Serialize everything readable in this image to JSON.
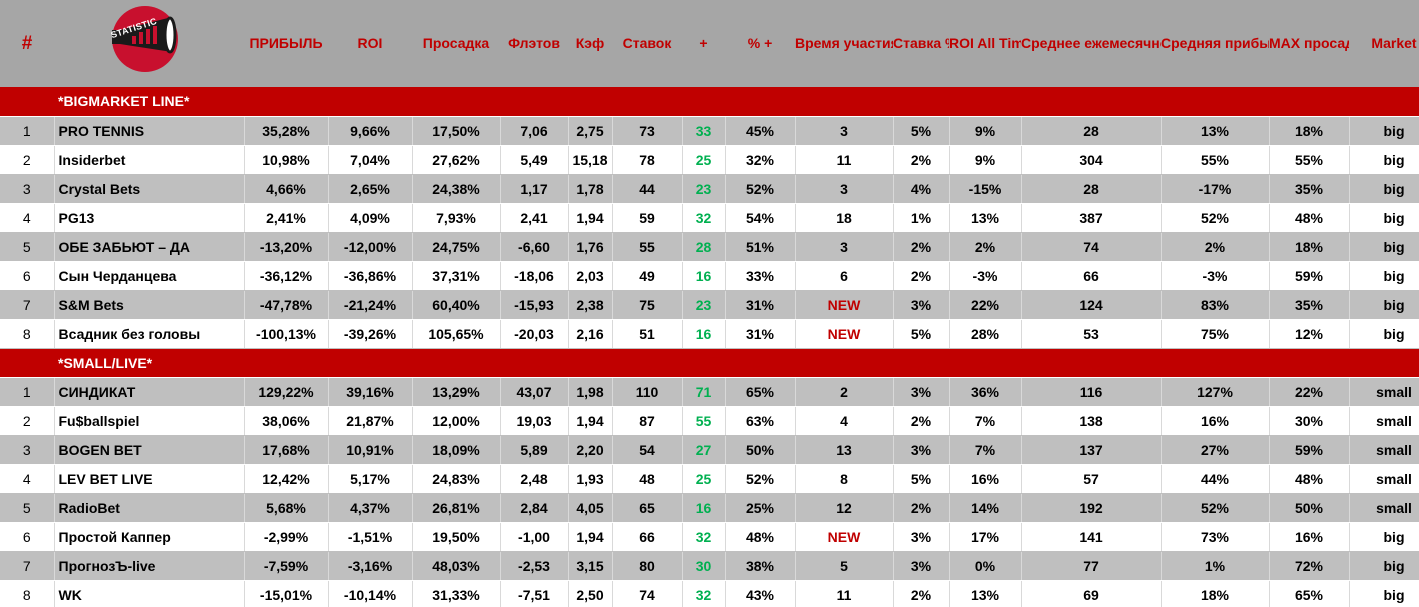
{
  "logo": {
    "text": "STATISTIC"
  },
  "header": [
    "#",
    "",
    "ПРИБЫЛЬ",
    "ROI",
    "Просадка",
    "Флэтов",
    "Кэф",
    "Ставок",
    "+",
    "% +",
    "Время участия в месяцах",
    "Ставка %",
    "ROI All Time",
    "Среднее ежемесячное кол-во ставок",
    "Средняя прибыль, %",
    "MAX просадка All time",
    "Market"
  ],
  "sections": [
    {
      "title": "*BIGMARKET LINE*",
      "rows": [
        [
          "1",
          "PRO TENNIS",
          "35,28%",
          "9,66%",
          "17,50%",
          "7,06",
          "2,75",
          "73",
          "33",
          "45%",
          "3",
          "5%",
          "9%",
          "28",
          "13%",
          "18%",
          "big"
        ],
        [
          "2",
          "Insiderbet",
          "10,98%",
          "7,04%",
          "27,62%",
          "5,49",
          "15,18",
          "78",
          "25",
          "32%",
          "11",
          "2%",
          "9%",
          "304",
          "55%",
          "55%",
          "big"
        ],
        [
          "3",
          "Crystal Bets",
          "4,66%",
          "2,65%",
          "24,38%",
          "1,17",
          "1,78",
          "44",
          "23",
          "52%",
          "3",
          "4%",
          "-15%",
          "28",
          "-17%",
          "35%",
          "big"
        ],
        [
          "4",
          "PG13",
          "2,41%",
          "4,09%",
          "7,93%",
          "2,41",
          "1,94",
          "59",
          "32",
          "54%",
          "18",
          "1%",
          "13%",
          "387",
          "52%",
          "48%",
          "big"
        ],
        [
          "5",
          "ОБЕ ЗАБЬЮТ – ДА",
          "-13,20%",
          "-12,00%",
          "24,75%",
          "-6,60",
          "1,76",
          "55",
          "28",
          "51%",
          "3",
          "2%",
          "2%",
          "74",
          "2%",
          "18%",
          "big"
        ],
        [
          "6",
          "Сын Черданцева",
          "-36,12%",
          "-36,86%",
          "37,31%",
          "-18,06",
          "2,03",
          "49",
          "16",
          "33%",
          "6",
          "2%",
          "-3%",
          "66",
          "-3%",
          "59%",
          "big"
        ],
        [
          "7",
          "S&M Bets",
          "-47,78%",
          "-21,24%",
          "60,40%",
          "-15,93",
          "2,38",
          "75",
          "23",
          "31%",
          "NEW",
          "3%",
          "22%",
          "124",
          "83%",
          "35%",
          "big"
        ],
        [
          "8",
          "Всадник без головы",
          "-100,13%",
          "-39,26%",
          "105,65%",
          "-20,03",
          "2,16",
          "51",
          "16",
          "31%",
          "NEW",
          "5%",
          "28%",
          "53",
          "75%",
          "12%",
          "big"
        ]
      ]
    },
    {
      "title": "*SMALL/LIVE*",
      "rows": [
        [
          "1",
          "СИНДИКАТ",
          "129,22%",
          "39,16%",
          "13,29%",
          "43,07",
          "1,98",
          "110",
          "71",
          "65%",
          "2",
          "3%",
          "36%",
          "116",
          "127%",
          "22%",
          "small"
        ],
        [
          "2",
          "Fu$ballspiel",
          "38,06%",
          "21,87%",
          "12,00%",
          "19,03",
          "1,94",
          "87",
          "55",
          "63%",
          "4",
          "2%",
          "7%",
          "138",
          "16%",
          "30%",
          "small"
        ],
        [
          "3",
          "BOGEN BET",
          "17,68%",
          "10,91%",
          "18,09%",
          "5,89",
          "2,20",
          "54",
          "27",
          "50%",
          "13",
          "3%",
          "7%",
          "137",
          "27%",
          "59%",
          "small"
        ],
        [
          "4",
          "LEV BET LIVE",
          "12,42%",
          "5,17%",
          "24,83%",
          "2,48",
          "1,93",
          "48",
          "25",
          "52%",
          "8",
          "5%",
          "16%",
          "57",
          "44%",
          "48%",
          "small"
        ],
        [
          "5",
          "RadioBet",
          "5,68%",
          "4,37%",
          "26,81%",
          "2,84",
          "4,05",
          "65",
          "16",
          "25%",
          "12",
          "2%",
          "14%",
          "192",
          "52%",
          "50%",
          "small"
        ],
        [
          "6",
          "Простой Каппер",
          "-2,99%",
          "-1,51%",
          "19,50%",
          "-1,00",
          "1,94",
          "66",
          "32",
          "48%",
          "NEW",
          "3%",
          "17%",
          "141",
          "73%",
          "16%",
          "big"
        ],
        [
          "7",
          "ПрогнозЪ-live",
          "-7,59%",
          "-3,16%",
          "48,03%",
          "-2,53",
          "3,15",
          "80",
          "30",
          "38%",
          "5",
          "3%",
          "0%",
          "77",
          "1%",
          "72%",
          "big"
        ],
        [
          "8",
          "WK",
          "-15,01%",
          "-10,14%",
          "31,33%",
          "-7,51",
          "2,50",
          "74",
          "32",
          "43%",
          "11",
          "2%",
          "13%",
          "69",
          "18%",
          "65%",
          "big"
        ]
      ]
    }
  ],
  "colors": {
    "header_bg": "#a6a6a6",
    "header_text": "#c00000",
    "section_bg": "#c00000",
    "row_odd": "#bfbfbf",
    "row_even": "#ffffff",
    "plus": "#00b050",
    "new": "#c00000"
  }
}
